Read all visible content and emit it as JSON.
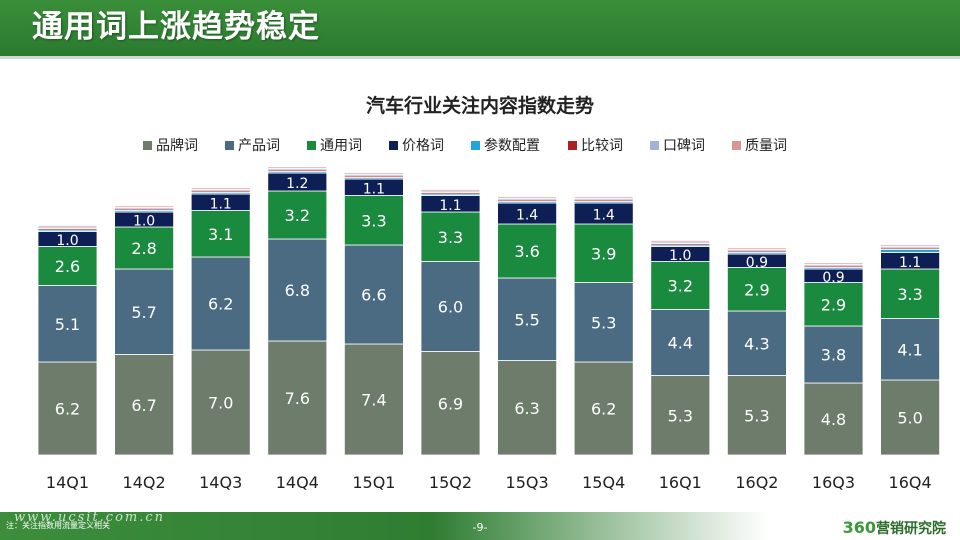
{
  "header": {
    "title": "通用词上涨趋势稳定"
  },
  "footer": {
    "note": "注：关注指数用流量定义相关",
    "watermark": "www.ucsit.com.cn",
    "page": "-9-",
    "logo_num": "360",
    "logo_text": "营销研究院"
  },
  "chart_data": {
    "type": "bar",
    "stacked": true,
    "title": "汽车行业关注内容指数走势",
    "xlabel": "",
    "ylabel": "",
    "legend_position": "top",
    "categories": [
      "14Q1",
      "14Q2",
      "14Q3",
      "14Q4",
      "15Q1",
      "15Q2",
      "15Q3",
      "15Q4",
      "16Q1",
      "16Q2",
      "16Q3",
      "16Q4"
    ],
    "series": [
      {
        "name": "品牌词",
        "color": "#6d7c6b",
        "values": [
          6.2,
          6.7,
          7.0,
          7.6,
          7.4,
          6.9,
          6.3,
          6.2,
          5.3,
          5.3,
          4.8,
          5.0
        ],
        "labels": true
      },
      {
        "name": "产品词",
        "color": "#4b6b82",
        "values": [
          5.1,
          5.7,
          6.2,
          6.8,
          6.6,
          6.0,
          5.5,
          5.3,
          4.4,
          4.3,
          3.8,
          4.1
        ],
        "labels": true
      },
      {
        "name": "通用词",
        "color": "#1a8a3f",
        "values": [
          2.6,
          2.8,
          3.1,
          3.2,
          3.3,
          3.3,
          3.6,
          3.9,
          3.2,
          2.9,
          2.9,
          3.3
        ],
        "labels": true
      },
      {
        "name": "价格词",
        "color": "#0e1f55",
        "values": [
          1.0,
          1.0,
          1.1,
          1.2,
          1.1,
          1.1,
          1.4,
          1.4,
          1.0,
          0.9,
          0.9,
          1.1
        ],
        "labels": true
      },
      {
        "name": "参数配置",
        "color": "#1fa6dc",
        "values": [
          0.1,
          0.1,
          0.1,
          0.1,
          0.1,
          0.1,
          0.1,
          0.1,
          0.1,
          0.1,
          0.1,
          0.2
        ],
        "labels": false
      },
      {
        "name": "比较词",
        "color": "#b01e22",
        "values": [
          0.1,
          0.1,
          0.1,
          0.1,
          0.1,
          0.1,
          0.1,
          0.1,
          0.1,
          0.1,
          0.1,
          0.1
        ],
        "labels": false
      },
      {
        "name": "口碑词",
        "color": "#9fb4d6",
        "values": [
          0.1,
          0.1,
          0.1,
          0.1,
          0.1,
          0.1,
          0.1,
          0.1,
          0.1,
          0.1,
          0.1,
          0.1
        ],
        "labels": false
      },
      {
        "name": "质量词",
        "color": "#d99694",
        "values": [
          0.1,
          0.1,
          0.1,
          0.1,
          0.1,
          0.1,
          0.1,
          0.1,
          0.1,
          0.1,
          0.1,
          0.1
        ],
        "labels": false
      }
    ],
    "ylim": [
      0,
      20
    ]
  }
}
